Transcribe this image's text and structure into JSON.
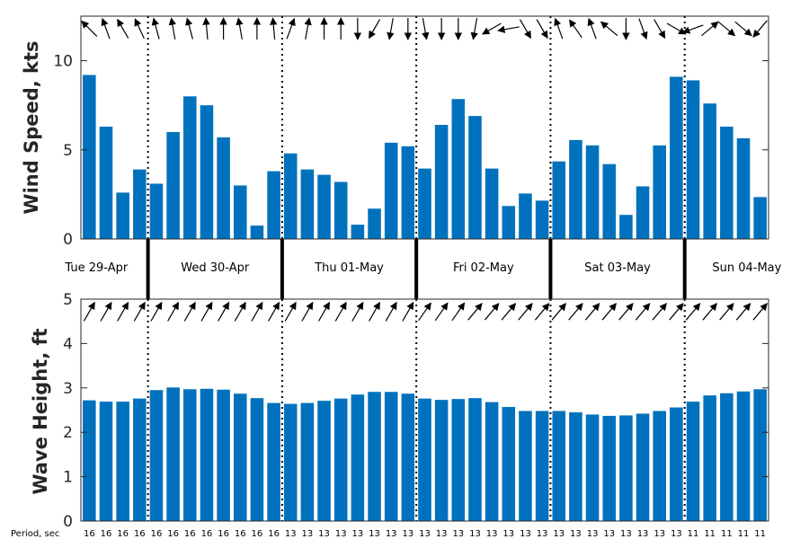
{
  "chart_data": [
    {
      "type": "bar",
      "ylabel": "Wind Speed, kts",
      "ylim": [
        0,
        12.5
      ],
      "yticks": [
        0,
        5,
        10
      ],
      "bar_color": "#0072BD",
      "values": [
        9.2,
        6.3,
        2.6,
        3.9,
        3.1,
        6.0,
        8.0,
        7.5,
        5.7,
        3.0,
        0.75,
        3.8,
        4.8,
        3.9,
        3.6,
        3.2,
        0.8,
        1.7,
        5.4,
        5.2,
        3.95,
        6.4,
        7.85,
        6.9,
        3.95,
        1.85,
        2.55,
        2.15,
        4.35,
        5.55,
        5.25,
        4.2,
        1.35,
        2.95,
        5.25,
        9.1,
        8.9,
        7.6,
        6.3,
        5.65,
        2.35
      ],
      "direction_deg": [
        135,
        110,
        120,
        115,
        105,
        100,
        105,
        95,
        90,
        100,
        90,
        95,
        70,
        80,
        90,
        90,
        270,
        240,
        260,
        270,
        280,
        270,
        270,
        260,
        210,
        190,
        300,
        300,
        110,
        125,
        110,
        140,
        270,
        290,
        300,
        330,
        200,
        40,
        320,
        320,
        230
      ]
    },
    {
      "type": "bar",
      "ylabel": "Wave Height, ft",
      "ylim": [
        0,
        5
      ],
      "yticks": [
        0,
        1,
        2,
        3,
        4,
        5
      ],
      "bar_color": "#0072BD",
      "values": [
        2.72,
        2.69,
        2.69,
        2.76,
        2.95,
        3.01,
        2.97,
        2.98,
        2.96,
        2.87,
        2.77,
        2.66,
        2.64,
        2.66,
        2.71,
        2.76,
        2.85,
        2.91,
        2.91,
        2.87,
        2.76,
        2.73,
        2.75,
        2.77,
        2.68,
        2.57,
        2.48,
        2.48,
        2.48,
        2.45,
        2.4,
        2.37,
        2.38,
        2.42,
        2.48,
        2.56,
        2.69,
        2.83,
        2.88,
        2.92,
        2.97
      ],
      "direction_deg": [
        60,
        60,
        60,
        60,
        60,
        60,
        60,
        60,
        60,
        60,
        60,
        60,
        60,
        60,
        60,
        60,
        60,
        60,
        60,
        60,
        55,
        55,
        55,
        50,
        50,
        50,
        50,
        50,
        50,
        50,
        50,
        50,
        50,
        50,
        50,
        50,
        50,
        50,
        50,
        50,
        50
      ]
    }
  ],
  "days": [
    "Tue 29-Apr",
    "Wed 30-Apr",
    "Thu 01-May",
    "Fri 02-May",
    "Sat 03-May",
    "Sun 04-May"
  ],
  "day_start_index": [
    0,
    4,
    12,
    20,
    28,
    36
  ],
  "period_label": "Period, sec",
  "periods": [
    16,
    16,
    16,
    16,
    16,
    16,
    16,
    16,
    16,
    16,
    16,
    16,
    13,
    13,
    13,
    13,
    13,
    13,
    13,
    13,
    13,
    13,
    13,
    13,
    13,
    13,
    13,
    13,
    13,
    13,
    13,
    13,
    13,
    13,
    13,
    13,
    11,
    11,
    11,
    11,
    11
  ]
}
